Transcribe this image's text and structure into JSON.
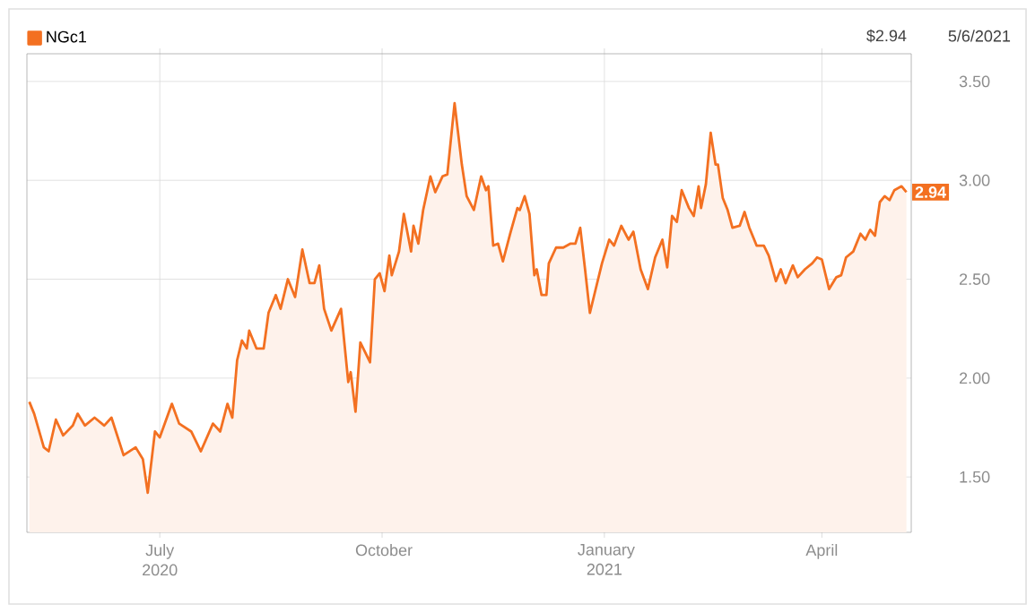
{
  "chart_data": {
    "type": "area",
    "x": [
      "2020-05-08",
      "2020-05-10",
      "2020-05-14",
      "2020-05-16",
      "2020-05-19",
      "2020-05-22",
      "2020-05-26",
      "2020-05-28",
      "2020-05-31",
      "2020-06-04",
      "2020-06-08",
      "2020-06-11",
      "2020-06-16",
      "2020-06-21",
      "2020-06-24",
      "2020-06-26",
      "2020-06-29",
      "2020-07-01",
      "2020-07-06",
      "2020-07-09",
      "2020-07-14",
      "2020-07-18",
      "2020-07-23",
      "2020-07-26",
      "2020-07-29",
      "2020-07-31",
      "2020-08-02",
      "2020-08-04",
      "2020-08-06",
      "2020-08-07",
      "2020-08-10",
      "2020-08-13",
      "2020-08-15",
      "2020-08-18",
      "2020-08-20",
      "2020-08-23",
      "2020-08-26",
      "2020-08-29",
      "2020-09-01",
      "2020-09-03",
      "2020-09-05",
      "2020-09-07",
      "2020-09-10",
      "2020-09-14",
      "2020-09-17",
      "2020-09-18",
      "2020-09-20",
      "2020-09-22",
      "2020-09-26",
      "2020-09-28",
      "2020-09-30",
      "2020-10-02",
      "2020-10-04",
      "2020-10-05",
      "2020-10-08",
      "2020-10-10",
      "2020-10-13",
      "2020-10-14",
      "2020-10-16",
      "2020-10-18",
      "2020-10-21",
      "2020-10-23",
      "2020-10-26",
      "2020-10-28",
      "2020-10-31",
      "2020-11-03",
      "2020-11-05",
      "2020-11-08",
      "2020-11-11",
      "2020-11-13",
      "2020-11-14",
      "2020-11-16",
      "2020-11-18",
      "2020-11-20",
      "2020-11-23",
      "2020-11-26",
      "2020-11-27",
      "2020-11-29",
      "2020-12-01",
      "2020-12-03",
      "2020-12-04",
      "2020-12-06",
      "2020-12-08",
      "2020-12-09",
      "2020-12-12",
      "2020-12-15",
      "2020-12-18",
      "2020-12-20",
      "2020-12-22",
      "2020-12-24",
      "2020-12-26",
      "2020-12-28",
      "2020-12-31",
      "2021-01-03",
      "2021-01-05",
      "2021-01-08",
      "2021-01-11",
      "2021-01-13",
      "2021-01-16",
      "2021-01-19",
      "2021-01-22",
      "2021-01-25",
      "2021-01-27",
      "2021-01-29",
      "2021-01-31",
      "2021-02-02",
      "2021-02-05",
      "2021-02-07",
      "2021-02-09",
      "2021-02-10",
      "2021-02-12",
      "2021-02-14",
      "2021-02-16",
      "2021-02-17",
      "2021-02-19",
      "2021-02-21",
      "2021-02-23",
      "2021-02-26",
      "2021-02-28",
      "2021-03-02",
      "2021-03-05",
      "2021-03-08",
      "2021-03-10",
      "2021-03-13",
      "2021-03-15",
      "2021-03-17",
      "2021-03-20",
      "2021-03-22",
      "2021-03-25",
      "2021-03-28",
      "2021-03-30",
      "2021-04-01",
      "2021-04-04",
      "2021-04-07",
      "2021-04-09",
      "2021-04-11",
      "2021-04-14",
      "2021-04-17",
      "2021-04-19",
      "2021-04-21",
      "2021-04-23",
      "2021-04-25",
      "2021-04-27",
      "2021-04-29",
      "2021-05-01",
      "2021-05-04",
      "2021-05-06"
    ],
    "series": [
      {
        "name": "NGc1",
        "color": "#f37021",
        "values": [
          1.88,
          1.82,
          1.65,
          1.63,
          1.79,
          1.71,
          1.76,
          1.82,
          1.76,
          1.8,
          1.76,
          1.8,
          1.61,
          1.65,
          1.59,
          1.42,
          1.73,
          1.7,
          1.87,
          1.77,
          1.73,
          1.63,
          1.77,
          1.73,
          1.87,
          1.8,
          2.09,
          2.19,
          2.15,
          2.24,
          2.15,
          2.15,
          2.33,
          2.42,
          2.35,
          2.5,
          2.41,
          2.65,
          2.48,
          2.48,
          2.57,
          2.35,
          2.24,
          2.35,
          1.98,
          2.03,
          1.83,
          2.18,
          2.08,
          2.5,
          2.53,
          2.44,
          2.62,
          2.52,
          2.64,
          2.83,
          2.64,
          2.77,
          2.68,
          2.85,
          3.02,
          2.94,
          3.02,
          3.03,
          3.39,
          3.08,
          2.92,
          2.85,
          3.02,
          2.95,
          2.97,
          2.67,
          2.68,
          2.59,
          2.73,
          2.86,
          2.85,
          2.92,
          2.83,
          2.52,
          2.55,
          2.42,
          2.42,
          2.58,
          2.66,
          2.66,
          2.68,
          2.68,
          2.76,
          2.55,
          2.33,
          2.43,
          2.58,
          2.7,
          2.67,
          2.77,
          2.7,
          2.74,
          2.55,
          2.45,
          2.61,
          2.7,
          2.56,
          2.82,
          2.79,
          2.95,
          2.86,
          2.82,
          2.97,
          2.86,
          2.98,
          3.24,
          3.08,
          3.08,
          2.91,
          2.85,
          2.76,
          2.77,
          2.84,
          2.76,
          2.67,
          2.67,
          2.62,
          2.49,
          2.55,
          2.48,
          2.57,
          2.51,
          2.55,
          2.58,
          2.61,
          2.6,
          2.45,
          2.51,
          2.52,
          2.61,
          2.64,
          2.73,
          2.7,
          2.75,
          2.72,
          2.89,
          2.92,
          2.9,
          2.95,
          2.97,
          2.94
        ]
      }
    ],
    "xlim": [
      "2020-05-07",
      "2021-05-08"
    ],
    "xticks": [
      {
        "value": "2020-07-01",
        "label": "July 2020"
      },
      {
        "value": "2020-10-01",
        "label": "October"
      },
      {
        "value": "2021-01-01",
        "label": "January 2021"
      },
      {
        "value": "2021-04-01",
        "label": "April"
      }
    ],
    "ylim": [
      1.22,
      3.64
    ],
    "yticks": [
      {
        "value": 1.5,
        "label": "1.50"
      },
      {
        "value": 2,
        "label": "2.00"
      },
      {
        "value": 2.5,
        "label": "2.50"
      },
      {
        "value": 3,
        "label": "3.00"
      },
      {
        "value": 3.5,
        "label": "3.50"
      }
    ],
    "grid": true,
    "legend": "top left",
    "annotations": [
      "$2.94",
      "5/6/2021",
      {
        "text": "2.94",
        "x": "2021-05-06",
        "y": 2.94
      }
    ]
  }
}
